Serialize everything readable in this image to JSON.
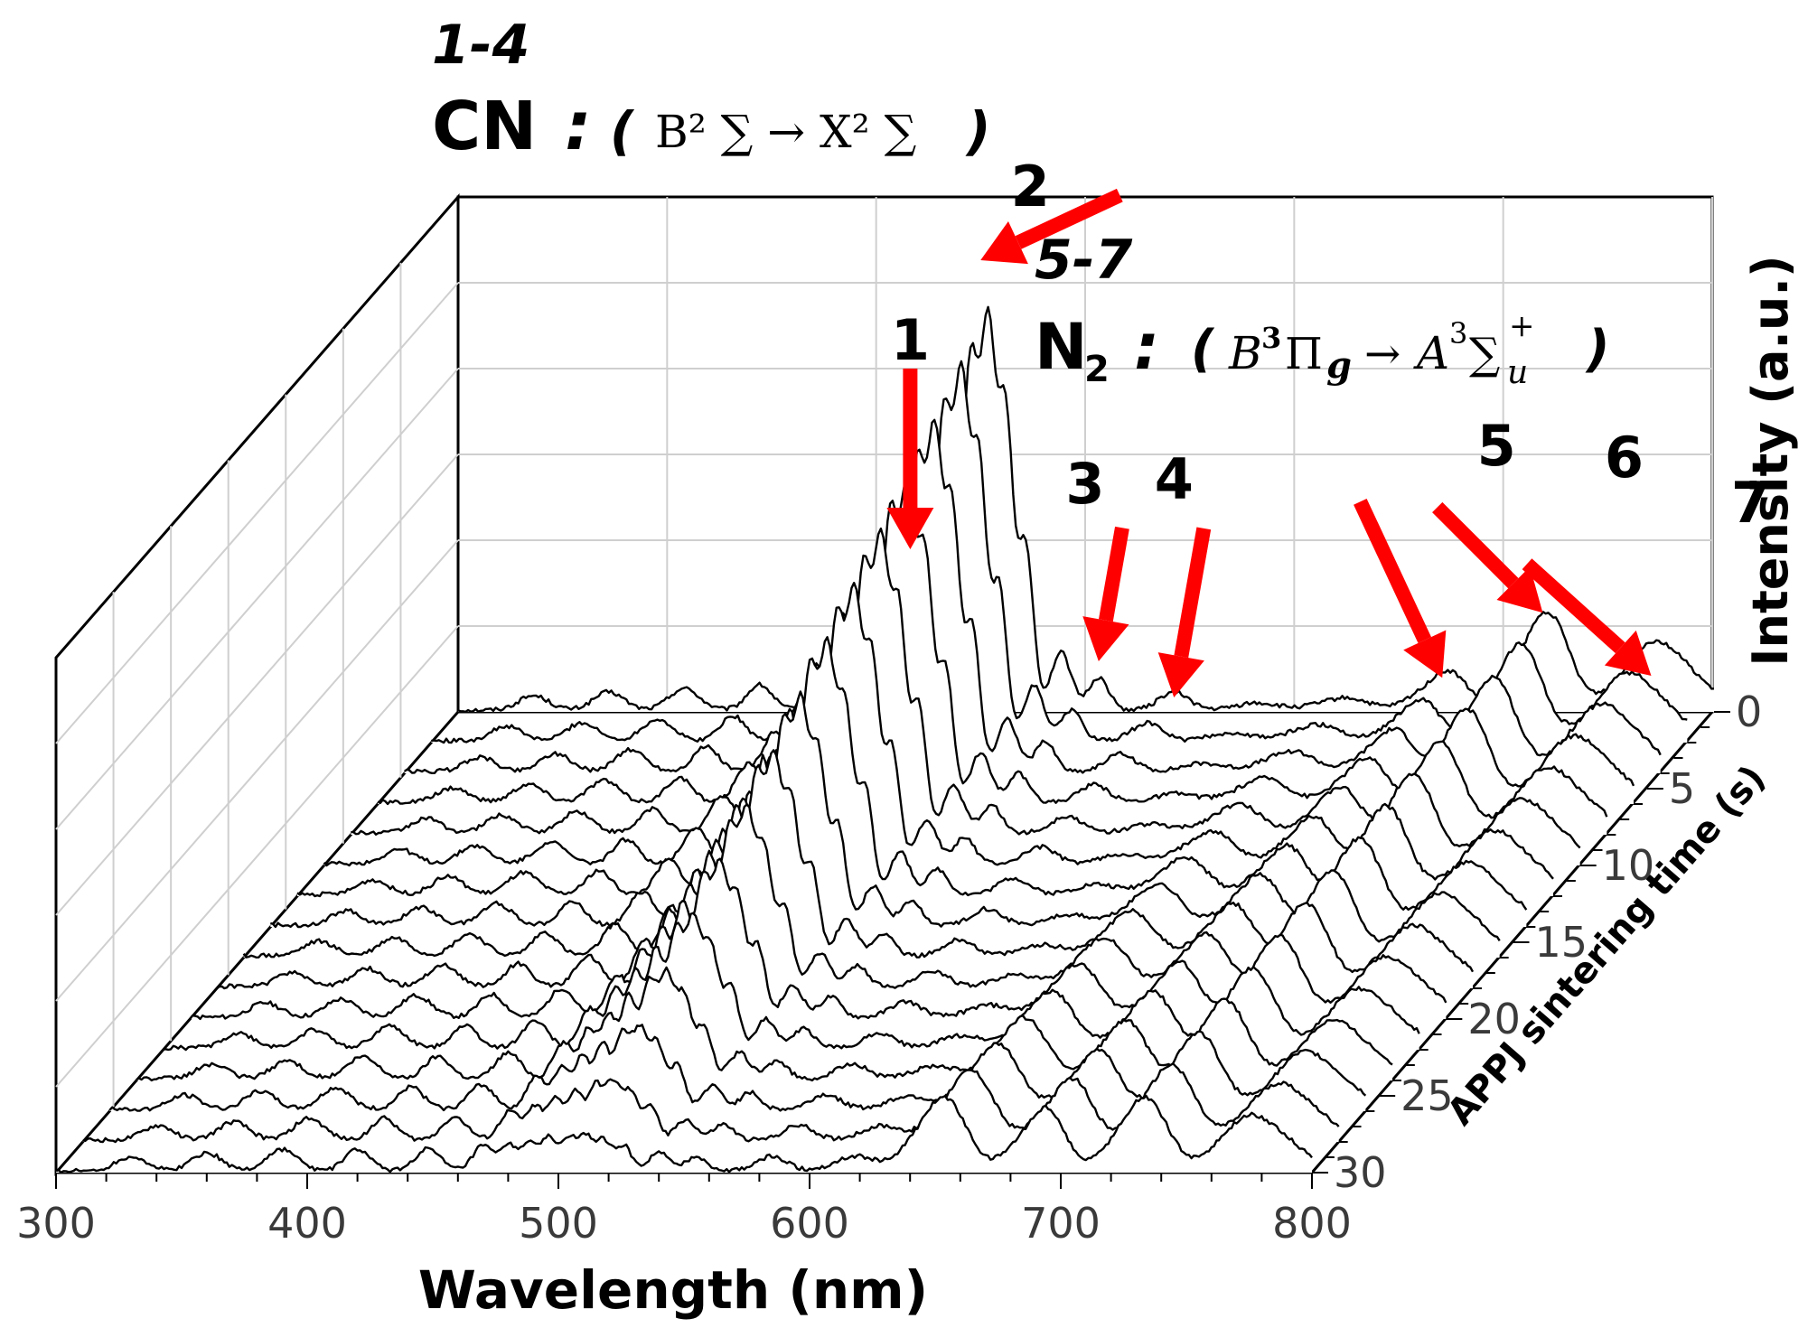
{
  "chart_data": {
    "type": "waterfall",
    "xlabel": "Wavelength (nm)",
    "ylabel": "Intensity (a.u.)",
    "zlabel": "APPJ sintering time (s)",
    "x_range": [
      300,
      800
    ],
    "x_ticks": [
      300,
      400,
      500,
      600,
      700,
      800
    ],
    "z_range": [
      0,
      30
    ],
    "z_ticks": [
      0,
      5,
      10,
      15,
      20,
      25,
      30
    ],
    "z_step": 2,
    "num_spectra": 16,
    "peaks": [
      {
        "label": "1",
        "wavelength": 480,
        "group": "CN"
      },
      {
        "label": "2",
        "wavelength": 508,
        "group": "CN"
      },
      {
        "label": "3",
        "wavelength": 555,
        "group": "CN"
      },
      {
        "label": "4",
        "wavelength": 585,
        "group": "CN"
      },
      {
        "label": "5",
        "wavelength": 695,
        "group": "N2"
      },
      {
        "label": "6",
        "wavelength": 735,
        "group": "N2"
      },
      {
        "label": "7",
        "wavelength": 775,
        "group": "N2"
      }
    ],
    "bands": [
      {
        "center": 330,
        "amp_start": 0.04,
        "amp_end": 0.04,
        "width": 6
      },
      {
        "center": 360,
        "amp_start": 0.05,
        "amp_end": 0.05,
        "width": 6
      },
      {
        "center": 390,
        "amp_start": 0.06,
        "amp_end": 0.06,
        "width": 6
      },
      {
        "center": 420,
        "amp_start": 0.07,
        "amp_end": 0.06,
        "width": 5
      },
      {
        "center": 448,
        "amp_start": 0.12,
        "amp_end": 0.06,
        "width": 5
      },
      {
        "center": 470,
        "amp_start": 0.22,
        "amp_end": 0.07,
        "width": 4
      },
      {
        "center": 480,
        "amp_start": 0.4,
        "amp_end": 0.07,
        "width": 3
      },
      {
        "center": 488,
        "amp_start": 0.55,
        "amp_end": 0.08,
        "width": 3
      },
      {
        "center": 496,
        "amp_start": 0.75,
        "amp_end": 0.09,
        "width": 3
      },
      {
        "center": 504,
        "amp_start": 0.92,
        "amp_end": 0.09,
        "width": 3
      },
      {
        "center": 511,
        "amp_start": 1.0,
        "amp_end": 0.09,
        "width": 3
      },
      {
        "center": 518,
        "amp_start": 0.8,
        "amp_end": 0.08,
        "width": 3
      },
      {
        "center": 526,
        "amp_start": 0.45,
        "amp_end": 0.07,
        "width": 3
      },
      {
        "center": 540,
        "amp_start": 0.16,
        "amp_end": 0.05,
        "width": 4
      },
      {
        "center": 555,
        "amp_start": 0.09,
        "amp_end": 0.04,
        "width": 4
      },
      {
        "center": 585,
        "amp_start": 0.05,
        "amp_end": 0.04,
        "width": 6
      },
      {
        "center": 618,
        "amp_start": 0.02,
        "amp_end": 0.04,
        "width": 8
      },
      {
        "center": 655,
        "amp_start": 0.03,
        "amp_end": 0.18,
        "width": 8
      },
      {
        "center": 695,
        "amp_start": 0.1,
        "amp_end": 0.16,
        "width": 7
      },
      {
        "center": 735,
        "amp_start": 0.24,
        "amp_end": 0.18,
        "width": 8
      },
      {
        "center": 775,
        "amp_start": 0.12,
        "amp_end": 0.1,
        "width": 9
      },
      {
        "center": 790,
        "amp_start": 0.08,
        "amp_end": 0.06,
        "width": 10
      }
    ],
    "annotations": {
      "cn_range": "1-4",
      "cn_label": "CN",
      "cn_colon": ":",
      "cn_open": "(",
      "cn_formula": "B² ∑ → X² ∑",
      "cn_close": ")",
      "n2_range": "5-7",
      "n2_label": "N",
      "n2_sub": "2",
      "n2_colon": ":",
      "n2_open": "(",
      "n2_formula_B": "B",
      "n2_formula_B_sup": "3",
      "n2_formula_Pi": "Π",
      "n2_formula_g": "g",
      "n2_formula_arrow": "→",
      "n2_formula_A": "A",
      "n2_formula_A_sup": "3",
      "n2_formula_Sigma": "∑",
      "n2_formula_plus": "+",
      "n2_formula_u": "u",
      "n2_close": ")"
    },
    "arrow_color": "#ff0000"
  }
}
